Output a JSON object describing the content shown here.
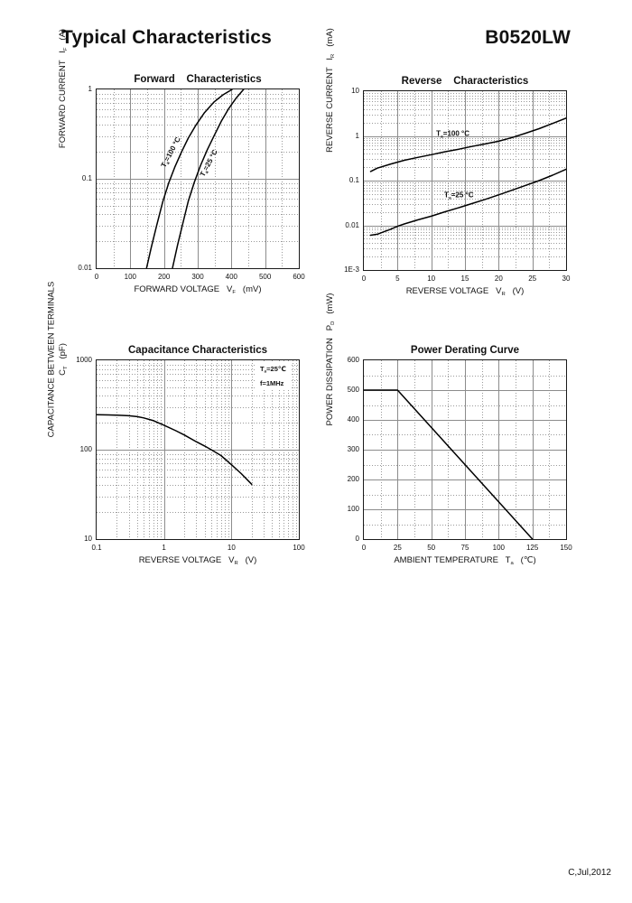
{
  "page": {
    "title": "Typical Characteristics",
    "part_number": "B0520LW",
    "footer": "C,Jul,2012"
  },
  "style": {
    "grid_major_color": "#8c8c8c",
    "grid_minor_color": "#9a9a9a",
    "curve_color": "#000000",
    "border_color": "#1a1a1a"
  },
  "chart_data": [
    {
      "id": "forward",
      "type": "line",
      "title": "Forward    Characteristics",
      "xscale": "linear",
      "yscale": "log",
      "xlim": [
        0,
        600
      ],
      "ylim": [
        0.01,
        1
      ],
      "xgrid": {
        "major": 100,
        "minor": 50
      },
      "xticks": [
        0,
        100,
        200,
        300,
        400,
        500,
        600
      ],
      "xtick_labels": [
        "0",
        "100",
        "200",
        "300",
        "400",
        "500",
        "600"
      ],
      "yticks": [
        1,
        0.1,
        0.01
      ],
      "ytick_labels": [
        "1",
        "0.1",
        "0.01"
      ],
      "xlabel": [
        {
          "t": "FORWARD VOLTAGE   V"
        },
        {
          "t": "F",
          "sub": true
        },
        {
          "t": "   (mV)"
        }
      ],
      "ylabel_lines": [
        [
          {
            "t": "FORWARD CURRENT   I"
          },
          {
            "t": "F",
            "sub": true
          },
          {
            "t": "   (A)"
          }
        ]
      ],
      "series": [
        {
          "name": "Ta=100 °C",
          "points": [
            [
              148,
              0.01
            ],
            [
              162,
              0.017
            ],
            [
              178,
              0.03
            ],
            [
              196,
              0.055
            ],
            [
              214,
              0.09
            ],
            [
              232,
              0.135
            ],
            [
              252,
              0.2
            ],
            [
              272,
              0.285
            ],
            [
              295,
              0.4
            ],
            [
              320,
              0.55
            ],
            [
              348,
              0.72
            ],
            [
              375,
              0.87
            ],
            [
              402,
              1.0
            ]
          ]
        },
        {
          "name": "Ta=25 °C",
          "points": [
            [
              225,
              0.01
            ],
            [
              240,
              0.018
            ],
            [
              256,
              0.032
            ],
            [
              272,
              0.056
            ],
            [
              290,
              0.092
            ],
            [
              308,
              0.14
            ],
            [
              328,
              0.21
            ],
            [
              348,
              0.3
            ],
            [
              370,
              0.44
            ],
            [
              392,
              0.61
            ],
            [
              414,
              0.8
            ],
            [
              436,
              1.0
            ]
          ]
        }
      ],
      "annotations": [
        {
          "fx": 0.372,
          "fy": 0.355,
          "rotate": -62,
          "parts": [
            {
              "t": "T"
            },
            {
              "t": "a",
              "sub": true
            },
            {
              "t": "=100 °C"
            }
          ]
        },
        {
          "fx": 0.558,
          "fy": 0.415,
          "rotate": -62,
          "parts": [
            {
              "t": "T"
            },
            {
              "t": "a",
              "sub": true
            },
            {
              "t": "=25 °C"
            }
          ]
        }
      ]
    },
    {
      "id": "reverse",
      "type": "line",
      "title": "Reverse    Characteristics",
      "xscale": "linear",
      "yscale": "log",
      "xlim": [
        0,
        30
      ],
      "ylim": [
        0.001,
        10
      ],
      "xgrid": {
        "major": 5,
        "minor": 2.5
      },
      "xticks": [
        0,
        5,
        10,
        15,
        20,
        25,
        30
      ],
      "xtick_labels": [
        "0",
        "5",
        "10",
        "15",
        "20",
        "25",
        "30"
      ],
      "yticks": [
        10,
        1,
        0.1,
        0.01,
        0.001
      ],
      "ytick_labels": [
        "10",
        "1",
        "0.1",
        "0.01",
        "1E-3"
      ],
      "xlabel": [
        {
          "t": "REVERSE VOLTAGE   V"
        },
        {
          "t": "R",
          "sub": true
        },
        {
          "t": "   (V)"
        }
      ],
      "ylabel_lines": [
        [
          {
            "t": "REVERSE CURRENT   I"
          },
          {
            "t": "R",
            "sub": true
          },
          {
            "t": "   (mA)"
          }
        ]
      ],
      "series": [
        {
          "name": "Ta=100 °C",
          "points": [
            [
              1,
              0.16
            ],
            [
              2,
              0.19
            ],
            [
              4,
              0.235
            ],
            [
              6,
              0.285
            ],
            [
              8,
              0.33
            ],
            [
              10,
              0.38
            ],
            [
              12,
              0.44
            ],
            [
              14,
              0.5
            ],
            [
              16,
              0.58
            ],
            [
              18,
              0.66
            ],
            [
              20,
              0.76
            ],
            [
              22,
              0.92
            ],
            [
              24,
              1.15
            ],
            [
              26,
              1.45
            ],
            [
              28,
              1.9
            ],
            [
              30,
              2.5
            ]
          ]
        },
        {
          "name": "Ta=25 °C",
          "points": [
            [
              1,
              0.006
            ],
            [
              2,
              0.0063
            ],
            [
              3,
              0.0072
            ],
            [
              4,
              0.0082
            ],
            [
              5,
              0.0095
            ],
            [
              6,
              0.0107
            ],
            [
              8,
              0.0132
            ],
            [
              10,
              0.016
            ],
            [
              12,
              0.02
            ],
            [
              14,
              0.0245
            ],
            [
              16,
              0.0305
            ],
            [
              18,
              0.038
            ],
            [
              20,
              0.048
            ],
            [
              22,
              0.061
            ],
            [
              24,
              0.078
            ],
            [
              26,
              0.1
            ],
            [
              28,
              0.132
            ],
            [
              30,
              0.18
            ]
          ]
        }
      ],
      "annotations": [
        {
          "fx": 0.44,
          "fy": 0.24,
          "rotate": 0,
          "parts": [
            {
              "t": "T"
            },
            {
              "t": "a",
              "sub": true
            },
            {
              "t": "=100 °C"
            }
          ]
        },
        {
          "fx": 0.47,
          "fy": 0.585,
          "rotate": 0,
          "parts": [
            {
              "t": "T"
            },
            {
              "t": "a",
              "sub": true
            },
            {
              "t": "=25 °C"
            }
          ]
        }
      ]
    },
    {
      "id": "capacitance",
      "type": "line",
      "title": "Capacitance Characteristics",
      "xscale": "log",
      "yscale": "log",
      "xlim": [
        0.1,
        100
      ],
      "ylim": [
        10,
        1000
      ],
      "xticks": [
        0.1,
        1,
        10,
        100
      ],
      "xtick_labels": [
        "0.1",
        "1",
        "10",
        "100"
      ],
      "yticks": [
        1000,
        100,
        10
      ],
      "ytick_labels": [
        "1000",
        "100",
        "10"
      ],
      "xlabel": [
        {
          "t": "REVERSE VOLTAGE   V"
        },
        {
          "t": "R",
          "sub": true
        },
        {
          "t": "   (V)"
        }
      ],
      "ylabel_lines": [
        [
          {
            "t": "CAPACITANCE BETWEEN TERMINALS"
          }
        ],
        [
          {
            "t": "C"
          },
          {
            "t": "T",
            "sub": true
          },
          {
            "t": "   (pF)"
          }
        ]
      ],
      "series": [
        {
          "name": "Ta=25 °C f=1MHz",
          "points": [
            [
              0.1,
              246
            ],
            [
              0.15,
              245
            ],
            [
              0.2,
              243
            ],
            [
              0.3,
              240
            ],
            [
              0.4,
              234
            ],
            [
              0.5,
              227
            ],
            [
              0.7,
              211
            ],
            [
              1,
              188
            ],
            [
              1.5,
              163
            ],
            [
              2,
              146
            ],
            [
              3,
              123
            ],
            [
              4,
              110
            ],
            [
              5,
              100
            ],
            [
              7,
              86
            ],
            [
              10,
              68
            ],
            [
              14,
              54
            ],
            [
              20,
              41
            ]
          ]
        }
      ],
      "annotations": [
        {
          "fx": 0.79,
          "fy": 0.012,
          "box": true,
          "lines": [
            [
              {
                "t": "T"
              },
              {
                "t": "a",
                "sub": true
              },
              {
                "t": "=25℃"
              }
            ],
            [
              {
                "t": "f=1MHz"
              }
            ]
          ]
        }
      ]
    },
    {
      "id": "power",
      "type": "line",
      "title": "Power Derating Curve",
      "xscale": "linear",
      "yscale": "linear",
      "xlim": [
        0,
        150
      ],
      "ylim": [
        0,
        600
      ],
      "xgrid": {
        "major": 25,
        "minor": 12.5
      },
      "ygrid": {
        "major": 100,
        "minor": 50
      },
      "xticks": [
        0,
        25,
        50,
        75,
        100,
        125,
        150
      ],
      "xtick_labels": [
        "0",
        "25",
        "50",
        "75",
        "100",
        "125",
        "150"
      ],
      "yticks": [
        600,
        500,
        400,
        300,
        200,
        100,
        0
      ],
      "ytick_labels": [
        "600",
        "500",
        "400",
        "300",
        "200",
        "100",
        "0"
      ],
      "xlabel": [
        {
          "t": "AMBIENT TEMPERATURE   T"
        },
        {
          "t": "a",
          "sub": true
        },
        {
          "t": "   (℃)"
        }
      ],
      "ylabel_lines": [
        [
          {
            "t": "POWER DISSIPATION   P"
          },
          {
            "t": "D",
            "sub": true
          },
          {
            "t": "   (mW)"
          }
        ]
      ],
      "series": [
        {
          "name": "Derating",
          "points": [
            [
              0,
              500
            ],
            [
              25,
              500
            ],
            [
              125,
              0
            ]
          ]
        }
      ],
      "annotations": []
    }
  ]
}
